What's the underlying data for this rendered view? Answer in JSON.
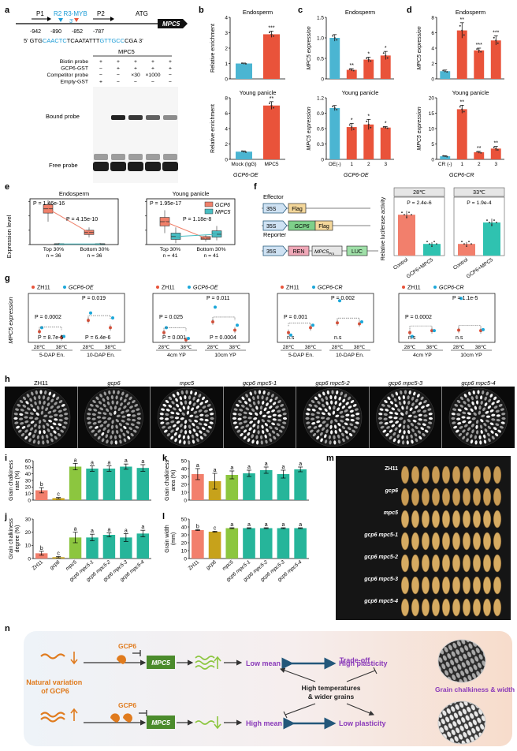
{
  "panel_labels": [
    "a",
    "b",
    "c",
    "d",
    "e",
    "f",
    "g",
    "h",
    "i",
    "j",
    "k",
    "l",
    "m",
    "n"
  ],
  "colors": {
    "blue": "#4bb5d2",
    "red": "#e9533a",
    "salmon": "#f28274",
    "gold": "#c7a21b",
    "green": "#8cc63f",
    "teal": "#26b59a",
    "orange": "#e07b1e",
    "purple": "#8a3ab9",
    "navy": "#23577a",
    "cyan": "#1ba7d9",
    "box_red": "#f0806a",
    "box_teal": "#48bdc2",
    "gene_green": "#4b8b2c"
  },
  "panel_a": {
    "p1": "P1",
    "p2": "P2",
    "motif": "R2 R3-MYB",
    "atg": "ATG",
    "gene": "MPC5",
    "pos": [
      "-942",
      "-890",
      "-852",
      "-787"
    ],
    "m3": "3'",
    "seq_start": "5' GTG",
    "seq_blue1": "CAACTC",
    "seq_mid": "TCAATATTT",
    "seq_blue2": "GTTGCC",
    "seq_end": "CGA 3'",
    "probe_header": "MPC5",
    "rows": [
      {
        "label": "Biotin probe",
        "cells": [
          "+",
          "+",
          "+",
          "+",
          "+"
        ]
      },
      {
        "label": "GCP6-GST",
        "cells": [
          "−",
          "+",
          "+",
          "+",
          "+"
        ]
      },
      {
        "label": "Competitor probe",
        "cells": [
          "−",
          "−",
          "×30",
          "×1000",
          "−"
        ]
      },
      {
        "label": "Empty-GST",
        "cells": [
          "+",
          "−",
          "−",
          "−",
          "−"
        ]
      }
    ],
    "bound": "Bound probe",
    "free": "Free probe"
  },
  "panel_b": {
    "top": {
      "title": "Endosperm",
      "ylabel": "Relative enrichment",
      "yticks": [
        "0",
        "1",
        "2",
        "3",
        "4"
      ],
      "stars": "***"
    },
    "bottom": {
      "title": "Young panicle",
      "ylabel": "Relative enrichment",
      "yticks": [
        "0",
        "2",
        "4",
        "6",
        "8"
      ],
      "stars": "**"
    },
    "xlabels": [
      "Mock (IgG)",
      "MPC5"
    ],
    "group": "GCP6-OE"
  },
  "panel_c": {
    "top": {
      "title": "Endosperm",
      "yticks": [
        "0",
        "0.5",
        "1.0",
        "1.5"
      ],
      "stars": [
        "",
        "**",
        "*",
        "*"
      ]
    },
    "bottom": {
      "title": "Young panicle",
      "yticks": [
        "0",
        "0.3",
        "0.6",
        "0.9",
        "1.2"
      ],
      "stars": [
        "",
        "*",
        "*",
        "*"
      ]
    },
    "ylabel": "MPC5 expression",
    "xlabels": [
      "OE(-)",
      "1",
      "2",
      "3"
    ],
    "group": "GCP6-OE"
  },
  "panel_d": {
    "top": {
      "title": "Endosperm",
      "yticks": [
        "0",
        "2",
        "4",
        "6",
        "8"
      ],
      "stars": [
        "",
        "**",
        "***",
        "***"
      ]
    },
    "bottom": {
      "title": "Young panicle",
      "yticks": [
        "0",
        "5",
        "10",
        "15",
        "20"
      ],
      "stars": [
        "",
        "**",
        "**",
        "**"
      ]
    },
    "ylabel": "MPC5 expression",
    "xlabels": [
      "CR (-)",
      "1",
      "2",
      "3"
    ],
    "group": "GCP6-CR"
  },
  "panel_e": {
    "ylabel": "Expression level",
    "left": {
      "title": "Endosperm",
      "p1": "P = 1.46e-16",
      "p2": "P = 4.15e-10",
      "x1": "Top 30%",
      "x2": "Bottom 30%",
      "n1": "n = 36",
      "n2": "n = 36"
    },
    "right": {
      "title": "Young panicle",
      "p1": "P = 1.95e-17",
      "p2": "P = 1.18e-8",
      "x1": "Top 30%",
      "x2": "Bottom 30%",
      "n1": "n = 41",
      "n2": "n = 41"
    },
    "legend": [
      "GCP6",
      "MPC5"
    ]
  },
  "panel_f": {
    "effector": "Effector",
    "reporter": "Reporter",
    "p35s": "35S",
    "flag": "Flag",
    "gcp6": "GCP6",
    "ren": "REN",
    "mpc5pro": "MPC5",
    "pro_sub": "Pro",
    "luc": "LUC",
    "ylabel": "Relative luciferase activity",
    "left": {
      "title": "28℃",
      "p": "P = 2.4e-6"
    },
    "right": {
      "title": "33℃",
      "p": "P = 1.9e-4"
    },
    "xlabels": [
      "Control",
      "GCP6+MPC5"
    ]
  },
  "panel_g": {
    "ylabel": "MPC5 expression",
    "plots": [
      {
        "legend": [
          "ZH11",
          "GCP6-OE"
        ],
        "p": [
          "P = 0.0002",
          "P = 8.7e-5",
          "P = 0.019",
          "P = 6.4e-6"
        ],
        "x": [
          "28℃",
          "38℃",
          "28℃",
          "38℃"
        ],
        "groups": [
          "5-DAP En.",
          "10-DAP En."
        ]
      },
      {
        "legend": [
          "ZH11",
          "GCP6-OE"
        ],
        "p": [
          "P = 0.025",
          "P = 0.001",
          "P = 0.011",
          "P = 0.0004"
        ],
        "x": [
          "28℃",
          "38℃",
          "28℃",
          "38℃"
        ],
        "groups": [
          "4cm YP",
          "10cm YP"
        ]
      },
      {
        "legend": [
          "ZH11",
          "GCP6-CR"
        ],
        "p": [
          "P = 0.001",
          "n.s",
          "P = 0.002",
          "n.s"
        ],
        "x": [
          "28℃",
          "38℃",
          "28℃",
          "38℃"
        ],
        "groups": [
          "5-DAP En.",
          "10-DAP En."
        ]
      },
      {
        "legend": [
          "ZH11",
          "GCP6-CR"
        ],
        "p": [
          "P = 0.0002",
          "n.s",
          "P = 1.1e-5",
          "n.s"
        ],
        "x": [
          "28℃",
          "38℃",
          "28℃",
          "38℃"
        ],
        "groups": [
          "4cm YP",
          "10cm YP"
        ]
      }
    ]
  },
  "genotypes": [
    "ZH11",
    "gcp6",
    "mpc5",
    "gcp6 mpc5-1",
    "gcp6 mpc5-2",
    "gcp6 mpc5-3",
    "gcp6 mpc5-4"
  ],
  "chart_data": [
    {
      "panel": "i",
      "type": "bar",
      "ylabel": "Grain chalkiness rate (%)",
      "ylim": [
        0,
        60
      ],
      "yticks": [
        0,
        10,
        20,
        30,
        40,
        50,
        60
      ],
      "categories": [
        "ZH11",
        "gcp6",
        "mpc5",
        "gcp6 mpc5-1",
        "gcp6 mpc5-2",
        "gcp6 mpc5-3",
        "gcp6 mpc5-4"
      ],
      "values": [
        15,
        3,
        51,
        48,
        48,
        51,
        49
      ],
      "errors": [
        4,
        1,
        5,
        4,
        4,
        4,
        5
      ],
      "letters": [
        "b",
        "c",
        "a",
        "a",
        "a",
        "a",
        "a"
      ]
    },
    {
      "panel": "j",
      "type": "bar",
      "ylabel": "Grain chalkiness degree (%)",
      "ylim": [
        0,
        30
      ],
      "yticks": [
        0,
        10,
        20,
        30
      ],
      "categories": [
        "ZH11",
        "gcp6",
        "mpc5",
        "gcp6 mpc5-1",
        "gcp6 mpc5-2",
        "gcp6 mpc5-3",
        "gcp6 mpc5-4"
      ],
      "values": [
        4,
        1,
        16,
        16,
        18,
        16,
        19
      ],
      "errors": [
        1.5,
        0.5,
        4,
        2.5,
        1.5,
        3,
        2.5
      ],
      "letters": [
        "b",
        "c",
        "a",
        "a",
        "a",
        "a",
        "a"
      ]
    },
    {
      "panel": "k",
      "type": "bar",
      "ylabel": "Grain chalkiness area (%)",
      "ylim": [
        0,
        50
      ],
      "yticks": [
        0,
        10,
        20,
        30,
        40,
        50
      ],
      "categories": [
        "ZH11",
        "gcp6",
        "mpc5",
        "gcp6 mpc5-1",
        "gcp6 mpc5-2",
        "gcp6 mpc5-3",
        "gcp6 mpc5-4"
      ],
      "values": [
        33,
        24,
        32,
        34,
        38,
        33,
        39
      ],
      "errors": [
        7,
        10,
        5,
        4,
        4,
        5,
        3
      ],
      "letters": [
        "a",
        "a",
        "a",
        "a",
        "a",
        "a",
        "a"
      ]
    },
    {
      "panel": "l",
      "type": "bar",
      "ylabel": "Grain width (mm)",
      "ylim": [
        0,
        50
      ],
      "yticks": [
        0,
        10,
        20,
        30,
        40,
        50
      ],
      "categories": [
        "ZH11",
        "gcp6",
        "mpc5",
        "gcp6 mpc5-1",
        "gcp6 mpc5-2",
        "gcp6 mpc5-3",
        "gcp6 mpc5-4"
      ],
      "values": [
        36,
        34,
        38.5,
        38.5,
        38.5,
        38.5,
        38.5
      ],
      "errors": [
        0.5,
        0.5,
        0.5,
        0.5,
        0.5,
        0.5,
        0.5
      ],
      "letters": [
        "b",
        "c",
        "a",
        "a",
        "a",
        "a",
        "a"
      ]
    }
  ],
  "panel_n": {
    "variation": "Natural variation of GCP6",
    "gcp6": "GCP6",
    "mpc5": "MPC5",
    "low_mean": "Low mean",
    "high_plasticity": "High plasticity",
    "high_mean": "High mean",
    "low_plasticity": "Low plasticity",
    "tradeoff": "Trade-off",
    "center": "High temperatures & wider grains",
    "grain_label": "Grain chalkiness & width"
  }
}
